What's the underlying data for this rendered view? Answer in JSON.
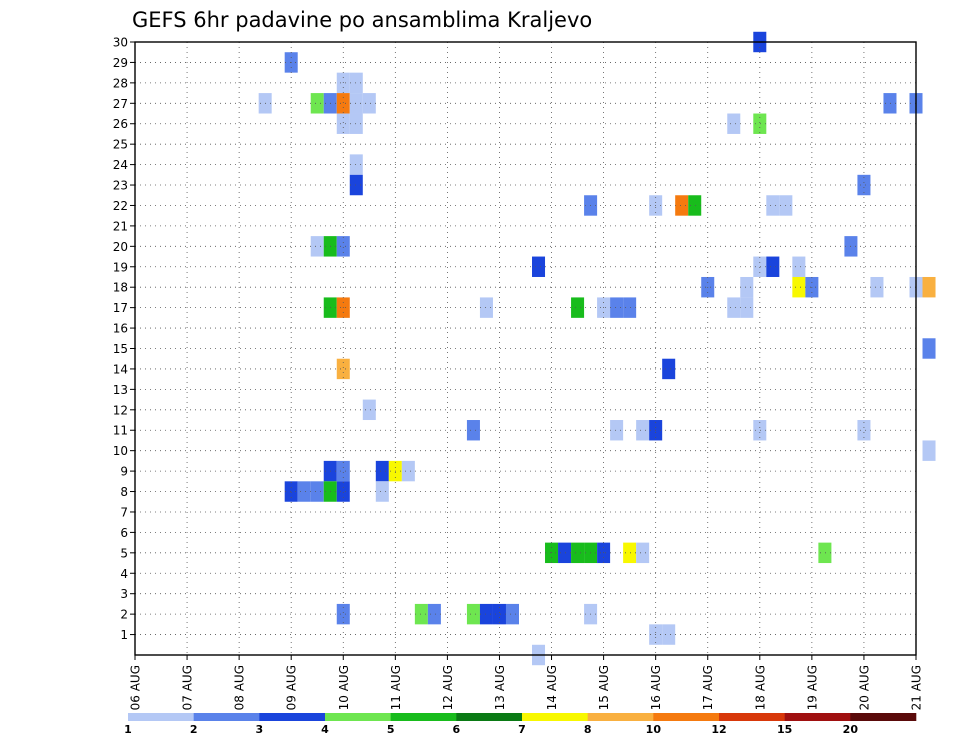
{
  "chart_data": {
    "type": "heatmap",
    "title": "GEFS 6hr padavine po ansamblima Kraljevo",
    "x_tick_labels": [
      "06 AUG",
      "07 AUG",
      "08 AUG",
      "09 AUG",
      "10 AUG",
      "11 AUG",
      "12 AUG",
      "13 AUG",
      "14 AUG",
      "15 AUG",
      "16 AUG",
      "17 AUG",
      "18 AUG",
      "19 AUG",
      "20 AUG",
      "21 AUG"
    ],
    "xlim_days_from_06_aug": [
      0,
      15
    ],
    "ylim_members": [
      0,
      30
    ],
    "y_tick_labels": [
      1,
      2,
      3,
      4,
      5,
      6,
      7,
      8,
      9,
      10,
      11,
      12,
      13,
      14,
      15,
      16,
      17,
      18,
      19,
      20,
      21,
      22,
      23,
      24,
      25,
      26,
      27,
      28,
      29,
      30
    ],
    "grid": true,
    "colorbar": {
      "position": "bottom",
      "labels": [
        "1",
        "2",
        "3",
        "4",
        "5",
        "6",
        "7",
        "8",
        "10",
        "12",
        "15",
        "20"
      ],
      "colors": [
        "#b4c8f5",
        "#5a82ea",
        "#1a44dc",
        "#6ee650",
        "#18bc1c",
        "#0a7a14",
        "#f8f800",
        "#f9b040",
        "#f57a0f",
        "#d8380a",
        "#a01010",
        "#5a0a0a"
      ]
    },
    "color_classes": [
      "#b4c8f5",
      "#5a82ea",
      "#1a44dc",
      "#6ee650",
      "#18bc1c",
      "#0a7a14",
      "#f8f800",
      "#f9b040",
      "#f57a0f",
      "#d8380a",
      "#a01010",
      "#5a0a0a"
    ],
    "cells_doc": "each cell: [member, step_index (6-hour steps from 06 AUG 00Z), color_class_index]",
    "cells": [
      [
        30,
        48,
        2
      ],
      [
        29,
        12,
        1
      ],
      [
        28,
        16,
        0
      ],
      [
        28,
        17,
        0
      ],
      [
        27,
        10,
        0
      ],
      [
        27,
        14,
        3
      ],
      [
        27,
        15,
        1
      ],
      [
        27,
        16,
        8
      ],
      [
        27,
        17,
        0
      ],
      [
        27,
        18,
        0
      ],
      [
        27,
        58,
        1
      ],
      [
        27,
        60,
        1
      ],
      [
        26,
        16,
        0
      ],
      [
        26,
        17,
        0
      ],
      [
        26,
        46,
        0
      ],
      [
        26,
        48,
        3
      ],
      [
        24,
        17,
        0
      ],
      [
        23,
        17,
        2
      ],
      [
        23,
        56,
        1
      ],
      [
        22,
        35,
        1
      ],
      [
        22,
        40,
        0
      ],
      [
        22,
        42,
        8
      ],
      [
        22,
        43,
        4
      ],
      [
        22,
        49,
        0
      ],
      [
        22,
        50,
        0
      ],
      [
        20,
        14,
        0
      ],
      [
        20,
        15,
        4
      ],
      [
        20,
        16,
        1
      ],
      [
        20,
        55,
        1
      ],
      [
        19,
        31,
        2
      ],
      [
        19,
        48,
        0
      ],
      [
        19,
        49,
        2
      ],
      [
        19,
        51,
        0
      ],
      [
        18,
        44,
        1
      ],
      [
        18,
        47,
        0
      ],
      [
        18,
        51,
        6
      ],
      [
        18,
        52,
        1
      ],
      [
        18,
        57,
        0
      ],
      [
        18,
        60,
        0
      ],
      [
        18,
        61,
        7
      ],
      [
        17,
        15,
        4
      ],
      [
        17,
        16,
        8
      ],
      [
        17,
        27,
        0
      ],
      [
        17,
        34,
        4
      ],
      [
        17,
        36,
        0
      ],
      [
        17,
        37,
        1
      ],
      [
        17,
        38,
        1
      ],
      [
        17,
        46,
        0
      ],
      [
        17,
        47,
        0
      ],
      [
        15,
        61,
        1
      ],
      [
        14,
        16,
        7
      ],
      [
        14,
        41,
        2
      ],
      [
        12,
        18,
        0
      ],
      [
        11,
        26,
        1
      ],
      [
        11,
        37,
        0
      ],
      [
        11,
        39,
        0
      ],
      [
        11,
        40,
        2
      ],
      [
        11,
        48,
        0
      ],
      [
        11,
        56,
        0
      ],
      [
        10,
        61,
        0
      ],
      [
        9,
        15,
        2
      ],
      [
        9,
        16,
        1
      ],
      [
        9,
        19,
        2
      ],
      [
        9,
        20,
        6
      ],
      [
        9,
        21,
        0
      ],
      [
        8,
        12,
        2
      ],
      [
        8,
        13,
        1
      ],
      [
        8,
        14,
        1
      ],
      [
        8,
        15,
        4
      ],
      [
        8,
        16,
        2
      ],
      [
        8,
        19,
        0
      ],
      [
        5,
        32,
        4
      ],
      [
        5,
        33,
        2
      ],
      [
        5,
        34,
        4
      ],
      [
        5,
        35,
        4
      ],
      [
        5,
        36,
        2
      ],
      [
        5,
        38,
        6
      ],
      [
        5,
        39,
        0
      ],
      [
        5,
        53,
        3
      ],
      [
        2,
        16,
        1
      ],
      [
        2,
        22,
        3
      ],
      [
        2,
        23,
        1
      ],
      [
        2,
        26,
        3
      ],
      [
        2,
        27,
        2
      ],
      [
        2,
        28,
        2
      ],
      [
        2,
        29,
        1
      ],
      [
        2,
        35,
        0
      ],
      [
        1,
        40,
        0
      ],
      [
        1,
        41,
        0
      ],
      [
        0,
        31,
        0
      ]
    ]
  }
}
